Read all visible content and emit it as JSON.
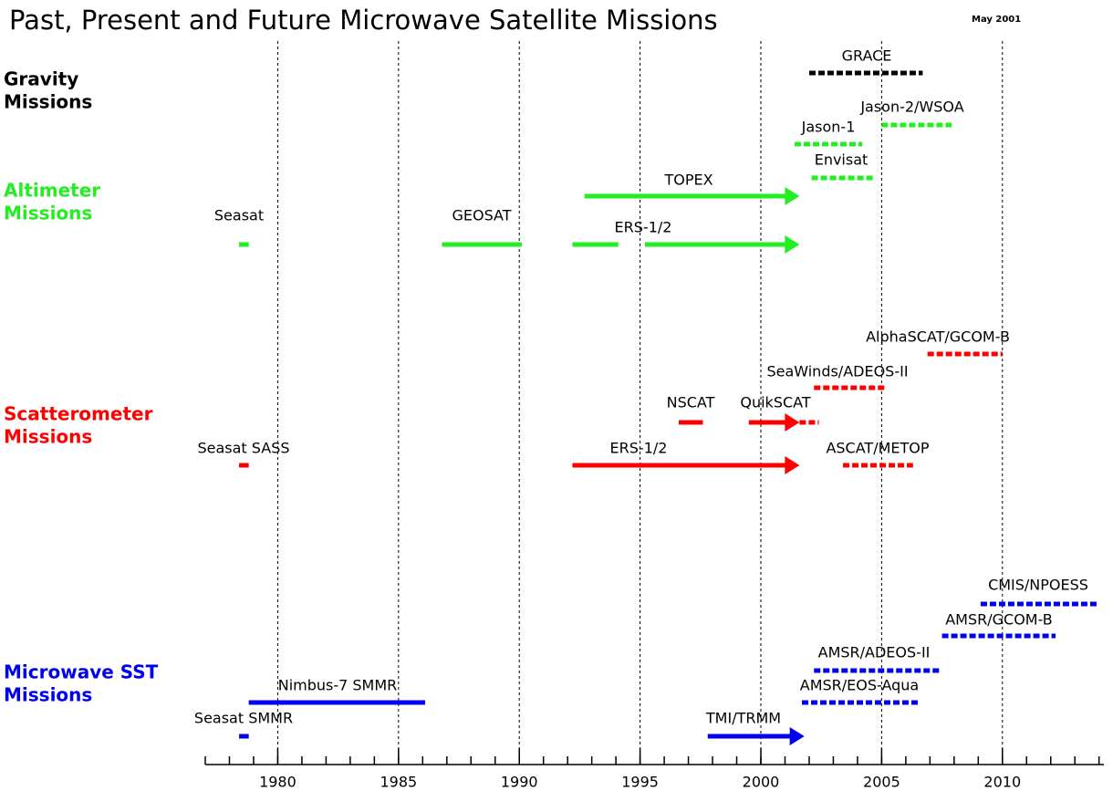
{
  "chart_data": {
    "type": "timeline",
    "title": "Past, Present and Future Microwave Satellite Missions",
    "date_note": "May 2001",
    "xlim": [
      1977,
      2014.2
    ],
    "xticks": [
      1980,
      1985,
      1990,
      1995,
      2000,
      2005,
      2010
    ],
    "xminorticks": [
      1977,
      1978,
      1979,
      1980,
      1981,
      1982,
      1983,
      1984,
      1985,
      1986,
      1987,
      1988,
      1989,
      1990,
      1991,
      1992,
      1993,
      1994,
      1995,
      1996,
      1997,
      1998,
      1999,
      2000,
      2001,
      2002,
      2003,
      2004,
      2005,
      2006,
      2007,
      2008,
      2009,
      2010,
      2011,
      2012,
      2013,
      2014
    ],
    "grid": true,
    "groups": [
      {
        "lines": [
          "Gravity",
          "Missions"
        ],
        "color": "#000000"
      },
      {
        "lines": [
          "Altimeter",
          "Missions"
        ],
        "color": "#22ee22"
      },
      {
        "lines": [
          "Scatterometer",
          "Missions"
        ],
        "color": "#ff0000"
      },
      {
        "lines": [
          "Microwave SST",
          "Missions"
        ],
        "color": "#0000ee"
      }
    ],
    "missions": [
      {
        "name": "GRACE",
        "group": 0,
        "start": 2002.0,
        "end": 2006.7,
        "status": "planned"
      },
      {
        "name": "Jason-2/WSOA",
        "group": 1,
        "start": 2005.0,
        "end": 2007.9,
        "status": "planned"
      },
      {
        "name": "Jason-1",
        "group": 1,
        "start": 2001.4,
        "end": 2004.2,
        "status": "planned"
      },
      {
        "name": "Envisat",
        "group": 1,
        "start": 2002.1,
        "end": 2004.7,
        "status": "planned"
      },
      {
        "name": "TOPEX",
        "group": 1,
        "start": 1992.7,
        "end": 2001.6,
        "status": "ongoing"
      },
      {
        "name": "Seasat",
        "group": 1,
        "start": 1978.4,
        "end": 1978.8,
        "status": "past"
      },
      {
        "name": "GEOSAT",
        "group": 1,
        "start": 1986.8,
        "end": 1990.1,
        "status": "past"
      },
      {
        "name": "ERS-1/2",
        "group": 1,
        "start": 1992.2,
        "end": 1994.1,
        "status": "past"
      },
      {
        "name": null,
        "group": 1,
        "start": 1995.2,
        "end": 2001.6,
        "status": "ongoing"
      },
      {
        "name": "AlphaSCAT/GCOM-B",
        "group": 2,
        "start": 2006.9,
        "end": 2010.0,
        "status": "planned"
      },
      {
        "name": "SeaWinds/ADEOS-II",
        "group": 2,
        "start": 2002.2,
        "end": 2005.2,
        "status": "planned"
      },
      {
        "name": "NSCAT",
        "group": 2,
        "start": 1996.6,
        "end": 1997.6,
        "status": "past"
      },
      {
        "name": "QuikSCAT",
        "group": 2,
        "start": 1999.5,
        "end": 2001.6,
        "status": "ongoing"
      },
      {
        "name": null,
        "group": 2,
        "start": 2001.6,
        "end": 2002.4,
        "status": "planned"
      },
      {
        "name": "Seasat SASS",
        "group": 2,
        "start": 1978.4,
        "end": 1978.8,
        "status": "past"
      },
      {
        "name": "ERS-1/2",
        "group": 2,
        "start": 1992.2,
        "end": 2001.6,
        "status": "ongoing"
      },
      {
        "name": "ASCAT/METOP",
        "group": 2,
        "start": 2003.4,
        "end": 2006.3,
        "status": "planned"
      },
      {
        "name": "CMIS/NPOESS",
        "group": 3,
        "start": 2009.1,
        "end": 2013.9,
        "status": "planned"
      },
      {
        "name": "AMSR/GCOM-B",
        "group": 3,
        "start": 2007.5,
        "end": 2012.2,
        "status": "planned"
      },
      {
        "name": "AMSR/ADEOS-II",
        "group": 3,
        "start": 2002.2,
        "end": 2007.4,
        "status": "planned"
      },
      {
        "name": "Nimbus-7 SMMR",
        "group": 3,
        "start": 1978.8,
        "end": 1986.1,
        "status": "past"
      },
      {
        "name": "AMSR/EOS-Aqua",
        "group": 3,
        "start": 2001.7,
        "end": 2006.5,
        "status": "planned"
      },
      {
        "name": "Seasat SMMR",
        "group": 3,
        "start": 1978.4,
        "end": 1978.8,
        "status": "past"
      },
      {
        "name": "TMI/TRMM",
        "group": 3,
        "start": 1997.8,
        "end": 2001.8,
        "status": "ongoing"
      }
    ]
  }
}
